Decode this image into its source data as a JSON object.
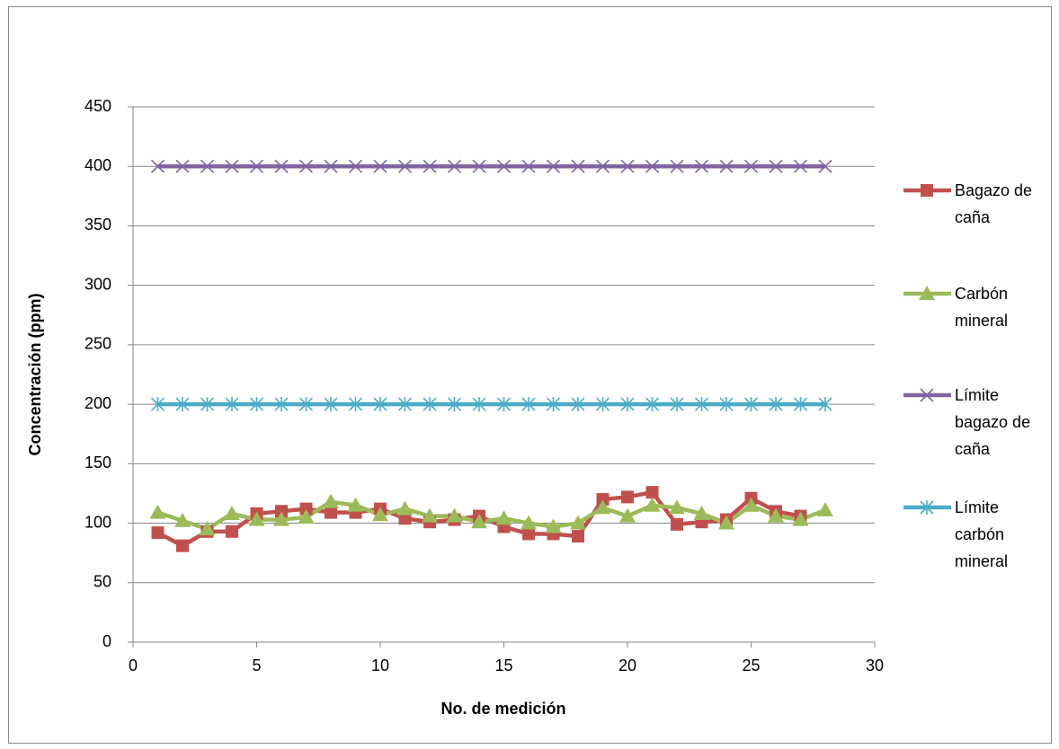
{
  "chart_data": {
    "type": "line",
    "x_label": "No. de medición",
    "y_label": "Concentración (ppm)",
    "x": [
      1,
      2,
      3,
      4,
      5,
      6,
      7,
      8,
      9,
      10,
      11,
      12,
      13,
      14,
      15,
      16,
      17,
      18,
      19,
      20,
      21,
      22,
      23,
      24,
      25,
      26,
      27,
      28
    ],
    "series": [
      {
        "name": "Bagazo de caña",
        "color": "#c0504d",
        "marker": "square",
        "values": [
          92,
          81,
          93,
          93,
          108,
          110,
          112,
          109,
          109,
          112,
          104,
          101,
          103,
          106,
          97,
          91,
          91,
          89,
          120,
          122,
          126,
          99,
          101,
          103,
          121,
          110,
          106,
          null
        ]
      },
      {
        "name": "Carbón mineral",
        "color": "#9bbb59",
        "marker": "triangle",
        "values": [
          109,
          102,
          95,
          108,
          103,
          103,
          105,
          118,
          115,
          107,
          112,
          106,
          106,
          101,
          104,
          100,
          97,
          100,
          113,
          106,
          115,
          113,
          108,
          100,
          115,
          106,
          103,
          111
        ]
      },
      {
        "name": "Límite bagazo de caña",
        "color": "#8064a2",
        "marker": "x",
        "values": [
          400,
          400,
          400,
          400,
          400,
          400,
          400,
          400,
          400,
          400,
          400,
          400,
          400,
          400,
          400,
          400,
          400,
          400,
          400,
          400,
          400,
          400,
          400,
          400,
          400,
          400,
          400,
          400
        ]
      },
      {
        "name": "Límite carbón mineral",
        "color": "#4bacc6",
        "marker": "star",
        "values": [
          200,
          200,
          200,
          200,
          200,
          200,
          200,
          200,
          200,
          200,
          200,
          200,
          200,
          200,
          200,
          200,
          200,
          200,
          200,
          200,
          200,
          200,
          200,
          200,
          200,
          200,
          200,
          200
        ]
      }
    ],
    "xlim": [
      0,
      30
    ],
    "xticks": [
      0,
      5,
      10,
      15,
      20,
      25,
      30
    ],
    "ylim": [
      0,
      450
    ],
    "yticks": [
      0,
      50,
      100,
      150,
      200,
      250,
      300,
      350,
      400,
      450
    ],
    "grid": true,
    "legend": "right"
  }
}
